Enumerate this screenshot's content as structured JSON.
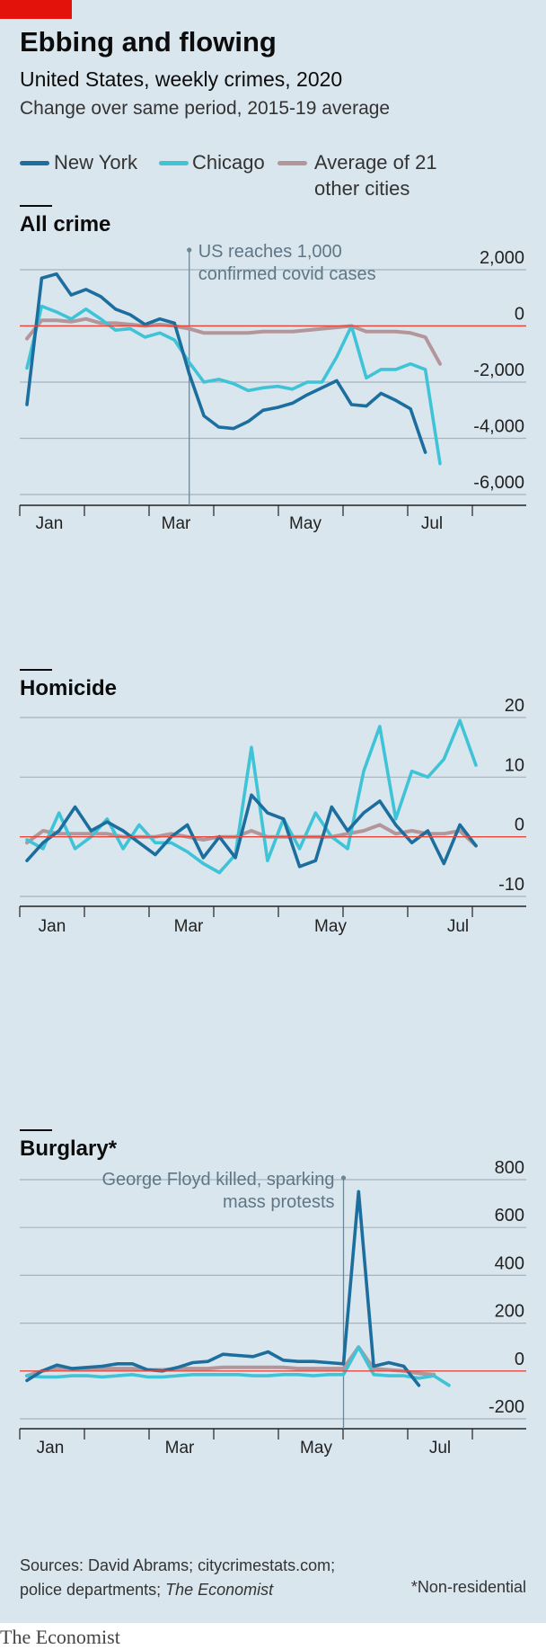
{
  "header": {
    "title": "Ebbing and flowing",
    "subtitle": "United States, weekly crimes, 2020",
    "subsubtitle": "Change over same period, 2015-19 average"
  },
  "legend": {
    "items": [
      {
        "name": "New York",
        "color": "#1c6e9e"
      },
      {
        "name": "Chicago",
        "color": "#3fc3d6"
      },
      {
        "name": "Average of 21 other cities",
        "line1": "Average of 21",
        "line2": "other cities",
        "color": "#b4959a"
      }
    ]
  },
  "footer": {
    "sources_prefix": "Sources: David Abrams; citycrimestats.com;",
    "sources_line2": "police departments;",
    "sources_italic": "The Economist",
    "footnote": "*Non-residential",
    "brand": "The Economist"
  },
  "chart_data": [
    {
      "type": "line",
      "title": "All crime",
      "x_ticks": [
        "Jan",
        "Mar",
        "May",
        "Jul"
      ],
      "ylim": [
        -6000,
        2000
      ],
      "y_ticks": [
        "2,000",
        "0",
        "-2,000",
        "-4,000",
        "-6,000"
      ],
      "y_tick_values": [
        2000,
        0,
        -2000,
        -4000,
        -6000
      ],
      "annotation": {
        "line1": "US reaches 1,000",
        "line2": "confirmed covid cases",
        "week": 11
      },
      "series": [
        {
          "name": "New York",
          "color": "#1c6e9e",
          "values": [
            -2800,
            1700,
            1850,
            1100,
            1300,
            1050,
            600,
            400,
            50,
            250,
            100,
            -1700,
            -3200,
            -3600,
            -3650,
            -3400,
            -3000,
            -2900,
            -2750,
            -2450,
            -2200,
            -1950,
            -2800,
            -2850,
            -2400,
            -2650,
            -2950,
            -4500
          ]
        },
        {
          "name": "Chicago",
          "color": "#3fc3d6",
          "values": [
            -1500,
            700,
            500,
            250,
            600,
            250,
            -150,
            -100,
            -400,
            -250,
            -500,
            -1300,
            -2000,
            -1900,
            -2050,
            -2300,
            -2200,
            -2150,
            -2250,
            -2000,
            -2000,
            -1100,
            0,
            -1850,
            -1550,
            -1550,
            -1350,
            -1550,
            -4900
          ]
        },
        {
          "name": "Average of 21 other cities",
          "color": "#b4959a",
          "values": [
            -450,
            200,
            200,
            150,
            250,
            100,
            100,
            50,
            0,
            50,
            0,
            -100,
            -250,
            -250,
            -250,
            -250,
            -200,
            -200,
            -200,
            -150,
            -100,
            -50,
            0,
            -200,
            -200,
            -200,
            -250,
            -400,
            -1350
          ]
        }
      ]
    },
    {
      "type": "line",
      "title": "Homicide",
      "x_ticks": [
        "Jan",
        "Mar",
        "May",
        "Jul"
      ],
      "ylim": [
        -10,
        20
      ],
      "y_ticks": [
        "20",
        "10",
        "0",
        "-10"
      ],
      "y_tick_values": [
        20,
        10,
        0,
        -10
      ],
      "series": [
        {
          "name": "New York",
          "color": "#1c6e9e",
          "values": [
            -4,
            -1,
            1,
            5,
            1,
            2.5,
            1,
            -1,
            -3,
            0,
            2,
            -3.5,
            0,
            -3.5,
            7,
            4,
            3,
            -5,
            -4,
            5,
            1,
            4,
            6,
            2,
            -1,
            1,
            -4.5,
            2,
            -1.5
          ]
        },
        {
          "name": "Chicago",
          "color": "#3fc3d6",
          "values": [
            -0.5,
            -2,
            4,
            -2,
            0,
            3,
            -2,
            2,
            -1,
            -1,
            -2.5,
            -4.5,
            -6,
            -3,
            15,
            -4,
            3,
            -2,
            4,
            0,
            -2,
            11,
            18.5,
            3,
            11,
            10,
            13,
            19.5,
            12
          ]
        },
        {
          "name": "Average of 21 other cities",
          "color": "#b4959a",
          "values": [
            -1,
            1,
            0.5,
            0.5,
            0.5,
            0.5,
            0,
            0,
            0,
            0.5,
            0,
            -0.5,
            0,
            0,
            1,
            0,
            0,
            0,
            0,
            0,
            0.5,
            1,
            2,
            0.5,
            1,
            0.5,
            0.5,
            1,
            -1.5
          ]
        }
      ]
    },
    {
      "type": "line",
      "title": "Burglary*",
      "x_ticks": [
        "Jan",
        "Mar",
        "May",
        "Jul"
      ],
      "ylim": [
        -200,
        800
      ],
      "y_ticks": [
        "800",
        "600",
        "400",
        "200",
        "0",
        "-200"
      ],
      "y_tick_values": [
        800,
        600,
        400,
        200,
        0,
        -200
      ],
      "annotation": {
        "line1": "George Floyd killed, sparking",
        "line2": "mass protests",
        "week": 21
      },
      "series": [
        {
          "name": "New York",
          "color": "#1c6e9e",
          "values": [
            -40,
            0,
            25,
            10,
            15,
            20,
            30,
            30,
            5,
            0,
            15,
            35,
            40,
            70,
            65,
            60,
            80,
            45,
            40,
            40,
            35,
            30,
            750,
            20,
            35,
            20,
            -60
          ]
        },
        {
          "name": "Chicago",
          "color": "#3fc3d6",
          "values": [
            -20,
            -25,
            -25,
            -20,
            -20,
            -25,
            -20,
            -15,
            -25,
            -25,
            -20,
            -15,
            -15,
            -15,
            -15,
            -20,
            -20,
            -15,
            -15,
            -20,
            -15,
            -15,
            100,
            -15,
            -20,
            -20,
            -30,
            -20,
            -60
          ]
        },
        {
          "name": "Average of 21 other cities",
          "color": "#b4959a",
          "values": [
            -20,
            0,
            10,
            10,
            10,
            10,
            10,
            10,
            5,
            5,
            10,
            10,
            10,
            15,
            15,
            15,
            15,
            15,
            10,
            10,
            10,
            10,
            100,
            10,
            5,
            0,
            -10,
            -15
          ]
        }
      ]
    }
  ]
}
